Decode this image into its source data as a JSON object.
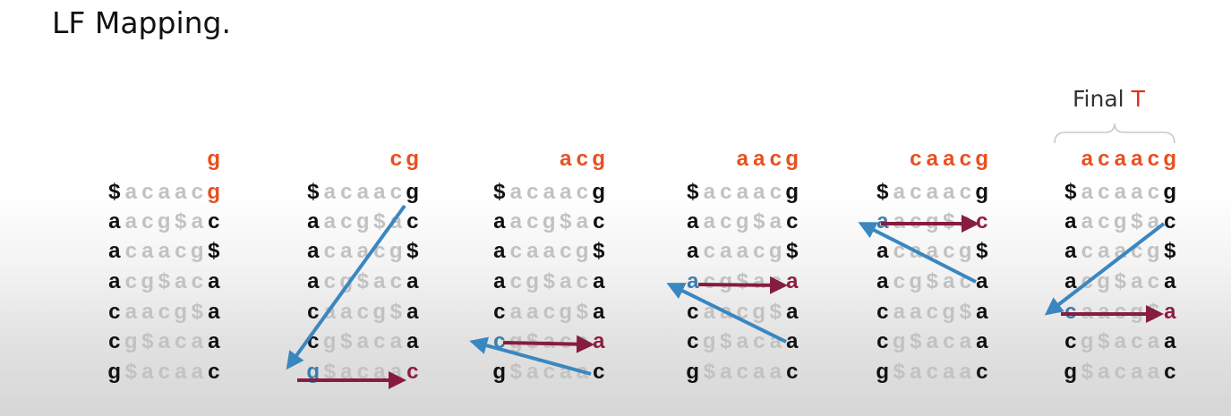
{
  "caption": "LF Mapping.",
  "final_label": {
    "prefix": "Final ",
    "letter": "T"
  },
  "columns": [
    {
      "header": "g",
      "rows": [
        [
          "$",
          "a",
          "c",
          "a",
          "a",
          "c",
          "g"
        ],
        [
          "a",
          "a",
          "c",
          "g",
          "$",
          "a",
          "c"
        ],
        [
          "a",
          "c",
          "a",
          "a",
          "c",
          "g",
          "$"
        ],
        [
          "a",
          "c",
          "g",
          "$",
          "a",
          "c",
          "a"
        ],
        [
          "c",
          "a",
          "a",
          "c",
          "g",
          "$",
          "a"
        ],
        [
          "c",
          "g",
          "$",
          "a",
          "c",
          "a",
          "a"
        ],
        [
          "g",
          "$",
          "a",
          "c",
          "a",
          "a",
          "c"
        ]
      ],
      "first_col_color": [
        null,
        null,
        null,
        null,
        null,
        null,
        null
      ],
      "last_col_color": [
        "orange",
        null,
        null,
        null,
        null,
        null,
        null
      ]
    },
    {
      "header": "c g",
      "rows": [
        [
          "$",
          "a",
          "c",
          "a",
          "a",
          "c",
          "g"
        ],
        [
          "a",
          "a",
          "c",
          "g",
          "$",
          "a",
          "c"
        ],
        [
          "a",
          "c",
          "a",
          "a",
          "c",
          "g",
          "$"
        ],
        [
          "a",
          "c",
          "g",
          "$",
          "a",
          "c",
          "a"
        ],
        [
          "c",
          "a",
          "a",
          "c",
          "g",
          "$",
          "a"
        ],
        [
          "c",
          "g",
          "$",
          "a",
          "c",
          "a",
          "a"
        ],
        [
          "g",
          "$",
          "a",
          "c",
          "a",
          "a",
          "c"
        ]
      ],
      "first_col_color": [
        null,
        null,
        null,
        null,
        null,
        null,
        "blue"
      ],
      "last_col_color": [
        null,
        null,
        null,
        null,
        null,
        null,
        "red"
      ]
    },
    {
      "header": "a c g",
      "rows": [
        [
          "$",
          "a",
          "c",
          "a",
          "a",
          "c",
          "g"
        ],
        [
          "a",
          "a",
          "c",
          "g",
          "$",
          "a",
          "c"
        ],
        [
          "a",
          "c",
          "a",
          "a",
          "c",
          "g",
          "$"
        ],
        [
          "a",
          "c",
          "g",
          "$",
          "a",
          "c",
          "a"
        ],
        [
          "c",
          "a",
          "a",
          "c",
          "g",
          "$",
          "a"
        ],
        [
          "c",
          "g",
          "$",
          "a",
          "c",
          "a",
          "a"
        ],
        [
          "g",
          "$",
          "a",
          "c",
          "a",
          "a",
          "c"
        ]
      ],
      "first_col_color": [
        null,
        null,
        null,
        null,
        null,
        "blue",
        null
      ],
      "last_col_color": [
        null,
        null,
        null,
        null,
        null,
        "red",
        null
      ]
    },
    {
      "header": "a a c g",
      "rows": [
        [
          "$",
          "a",
          "c",
          "a",
          "a",
          "c",
          "g"
        ],
        [
          "a",
          "a",
          "c",
          "g",
          "$",
          "a",
          "c"
        ],
        [
          "a",
          "c",
          "a",
          "a",
          "c",
          "g",
          "$"
        ],
        [
          "a",
          "c",
          "g",
          "$",
          "a",
          "c",
          "a"
        ],
        [
          "c",
          "a",
          "a",
          "c",
          "g",
          "$",
          "a"
        ],
        [
          "c",
          "g",
          "$",
          "a",
          "c",
          "a",
          "a"
        ],
        [
          "g",
          "$",
          "a",
          "c",
          "a",
          "a",
          "c"
        ]
      ],
      "first_col_color": [
        null,
        null,
        null,
        "blue",
        null,
        null,
        null
      ],
      "last_col_color": [
        null,
        null,
        null,
        "red",
        null,
        null,
        null
      ]
    },
    {
      "header": "c a a c g",
      "rows": [
        [
          "$",
          "a",
          "c",
          "a",
          "a",
          "c",
          "g"
        ],
        [
          "a",
          "a",
          "c",
          "g",
          "$",
          "a",
          "c"
        ],
        [
          "a",
          "c",
          "a",
          "a",
          "c",
          "g",
          "$"
        ],
        [
          "a",
          "c",
          "g",
          "$",
          "a",
          "c",
          "a"
        ],
        [
          "c",
          "a",
          "a",
          "c",
          "g",
          "$",
          "a"
        ],
        [
          "c",
          "g",
          "$",
          "a",
          "c",
          "a",
          "a"
        ],
        [
          "g",
          "$",
          "a",
          "c",
          "a",
          "a",
          "c"
        ]
      ],
      "first_col_color": [
        null,
        "blue",
        null,
        null,
        null,
        null,
        null
      ],
      "last_col_color": [
        null,
        "red",
        null,
        null,
        null,
        null,
        null
      ]
    },
    {
      "header": "a c a a c g",
      "rows": [
        [
          "$",
          "a",
          "c",
          "a",
          "a",
          "c",
          "g"
        ],
        [
          "a",
          "a",
          "c",
          "g",
          "$",
          "a",
          "c"
        ],
        [
          "a",
          "c",
          "a",
          "a",
          "c",
          "g",
          "$"
        ],
        [
          "a",
          "c",
          "g",
          "$",
          "a",
          "c",
          "a"
        ],
        [
          "c",
          "a",
          "a",
          "c",
          "g",
          "$",
          "a"
        ],
        [
          "c",
          "g",
          "$",
          "a",
          "c",
          "a",
          "a"
        ],
        [
          "g",
          "$",
          "a",
          "c",
          "a",
          "a",
          "c"
        ]
      ],
      "first_col_color": [
        null,
        null,
        null,
        null,
        "blue",
        null,
        null
      ],
      "last_col_color": [
        null,
        null,
        null,
        null,
        "red",
        null,
        null
      ]
    }
  ],
  "colors": {
    "orange": "#e8501f",
    "blue_arrow": "#3a87c0",
    "red_arrow": "#861d3e",
    "final_t": "#e0301a"
  }
}
